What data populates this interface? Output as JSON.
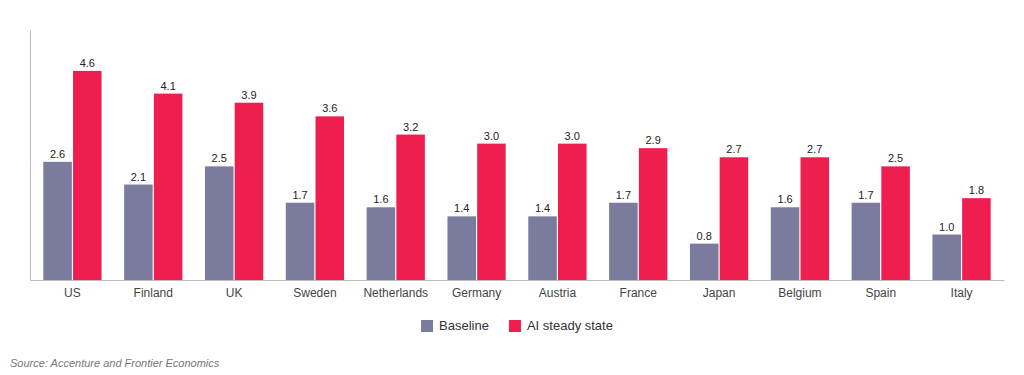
{
  "chart_data": {
    "type": "bar",
    "categories": [
      "US",
      "Finland",
      "UK",
      "Sweden",
      "Netherlands",
      "Germany",
      "Austria",
      "France",
      "Japan",
      "Belgium",
      "Spain",
      "Italy"
    ],
    "series": [
      {
        "name": "Baseline",
        "color": "#7b7b9e",
        "values": [
          2.6,
          2.1,
          2.5,
          1.7,
          1.6,
          1.4,
          1.4,
          1.7,
          0.8,
          1.6,
          1.7,
          1.0
        ],
        "value_labels": [
          "2.6",
          "2.1",
          "2.5",
          "1.7",
          "1.6",
          "1.4",
          "1.4",
          "1.7",
          "0.8",
          "1.6",
          "1.7",
          "1.0"
        ]
      },
      {
        "name": "AI steady state",
        "color": "#ee1f4e",
        "values": [
          4.6,
          4.1,
          3.9,
          3.6,
          3.2,
          3.0,
          3.0,
          2.9,
          2.7,
          2.7,
          2.5,
          1.8
        ],
        "value_labels": [
          "4.6",
          "4.1",
          "3.9",
          "3.6",
          "3.2",
          "3.0",
          "3.0",
          "2.9",
          "2.7",
          "2.7",
          "2.5",
          "1.8"
        ]
      }
    ],
    "ylim": [
      0,
      5.5
    ],
    "data_labels": true,
    "tick_labels": "x",
    "legend": "bottom",
    "annotations": [
      "Source: Accenture and Frontier Economics"
    ]
  }
}
